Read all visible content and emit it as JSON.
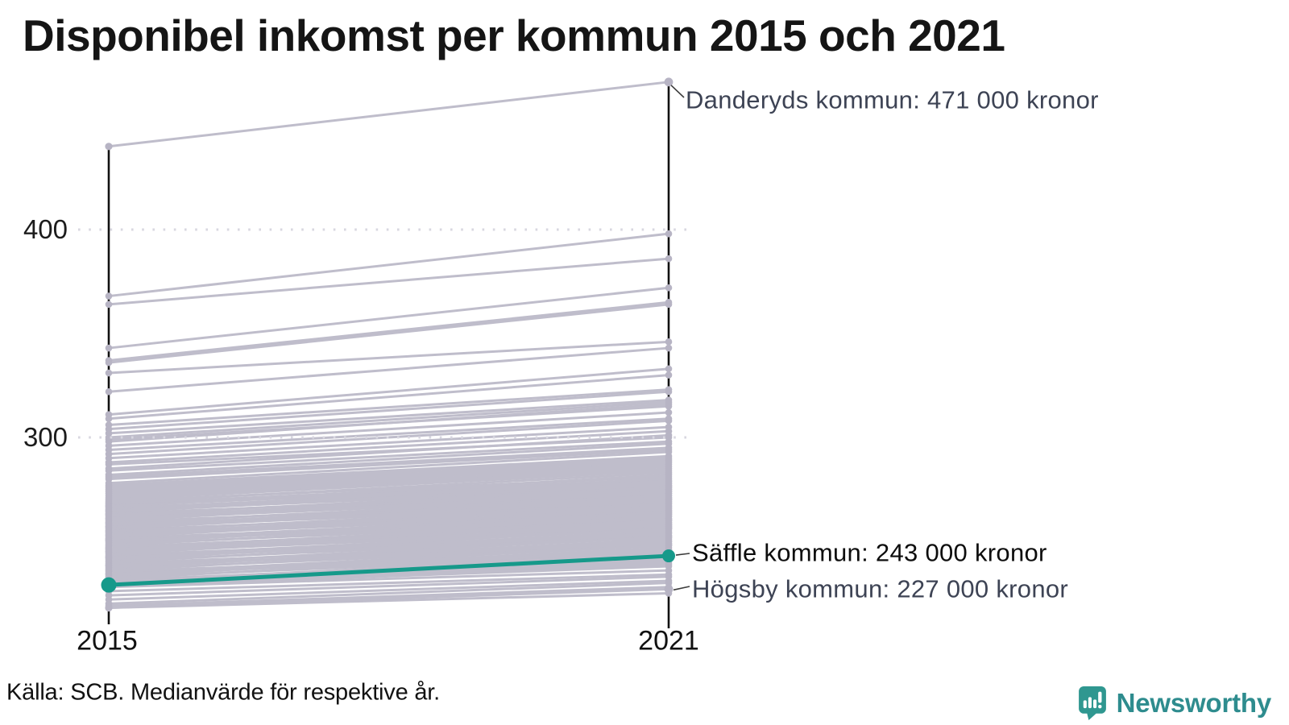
{
  "title": "Disponibel inkomst per kommun 2015 och 2021",
  "source": "Källa: SCB. Medianvärde för respektive år.",
  "logo": {
    "text": "Newsworthy"
  },
  "colors": {
    "accent": "#16998a",
    "background_line": "#bfbdcb",
    "background_dot": "#b7b4c4",
    "gridline": "#d8d7e0",
    "axis": "#111111",
    "leader": "#3c3c3c",
    "annotation_gray": "#3d4354",
    "annotation_black": "#0d0d0d",
    "logo_teal": "#2f9790"
  },
  "chart_data": {
    "type": "line",
    "subtype": "slope-chart",
    "title": "Disponibel inkomst per kommun 2015 och 2021",
    "x_labels": [
      "2015",
      "2021"
    ],
    "y_tick_labels": [
      "400",
      "300"
    ],
    "y_ticks": [
      400,
      300
    ],
    "unit": "tusen kronor (axis in thousands of SEK)",
    "grid": "dotted horizontal at 300 and 400",
    "highlight": {
      "name": "Säffle kommun",
      "values_2015_2021": [
        229,
        243
      ],
      "label": "Säffle kommun: 243 000 kronor",
      "color": "#16998a"
    },
    "labeled_endpoints": [
      {
        "name": "Danderyds kommun",
        "values_2015_2021": [
          440,
          471
        ],
        "label": "Danderyds kommun: 471 000 kronor"
      },
      {
        "name": "Högsby kommun",
        "values_2015_2021": [
          218,
          227
        ],
        "label": "Högsby kommun: 227 000 kronor"
      }
    ],
    "background_series": [
      [
        368,
        398
      ],
      [
        364,
        386
      ],
      [
        343,
        372
      ],
      [
        337,
        365
      ],
      [
        336,
        364
      ],
      [
        331,
        346
      ],
      [
        322,
        343
      ],
      [
        311,
        333
      ],
      [
        309,
        330
      ],
      [
        306,
        323
      ],
      [
        304,
        322
      ],
      [
        302,
        318
      ],
      [
        300,
        317
      ],
      [
        299,
        315
      ],
      [
        298,
        316
      ],
      [
        296,
        312
      ],
      [
        294,
        309
      ],
      [
        292,
        308
      ],
      [
        290,
        305
      ],
      [
        288,
        303
      ],
      [
        287,
        300
      ],
      [
        285,
        301
      ],
      [
        284,
        298
      ],
      [
        282,
        297
      ],
      [
        281,
        295
      ],
      [
        280,
        294
      ],
      [
        278,
        293
      ],
      [
        277,
        291
      ],
      [
        276,
        290
      ],
      [
        275,
        289
      ],
      [
        274,
        288
      ],
      [
        273,
        287
      ],
      [
        272,
        286
      ],
      [
        271,
        285
      ],
      [
        270,
        284
      ],
      [
        269.3,
        281
      ],
      [
        268.6,
        283
      ],
      [
        268,
        280
      ],
      [
        267.3,
        278
      ],
      [
        267,
        279
      ],
      [
        266.6,
        282
      ],
      [
        266,
        277
      ],
      [
        265.3,
        279
      ],
      [
        265,
        277
      ],
      [
        264.6,
        276
      ],
      [
        264,
        278
      ],
      [
        263.3,
        274
      ],
      [
        263,
        275
      ],
      [
        262.6,
        276
      ],
      [
        262,
        273
      ],
      [
        261.3,
        275
      ],
      [
        261,
        273
      ],
      [
        260.6,
        272
      ],
      [
        260,
        274
      ],
      [
        259.3,
        270
      ],
      [
        259,
        271
      ],
      [
        258.6,
        272
      ],
      [
        258,
        269
      ],
      [
        257.3,
        271
      ],
      [
        257,
        269
      ],
      [
        256.6,
        268
      ],
      [
        256,
        270
      ],
      [
        255.3,
        266
      ],
      [
        255,
        267
      ],
      [
        254.6,
        268
      ],
      [
        254,
        265
      ],
      [
        253.3,
        267
      ],
      [
        253,
        265
      ],
      [
        252.6,
        264
      ],
      [
        252,
        266
      ],
      [
        251.3,
        262
      ],
      [
        251,
        263
      ],
      [
        250.6,
        264
      ],
      [
        250.3,
        260.5
      ],
      [
        250,
        261
      ],
      [
        249.3,
        263
      ],
      [
        248.6,
        260
      ],
      [
        248,
        262
      ],
      [
        247.3,
        258
      ],
      [
        247,
        259
      ],
      [
        246.6,
        260
      ],
      [
        246.3,
        256.5
      ],
      [
        246,
        257
      ],
      [
        245.3,
        259
      ],
      [
        245,
        257
      ],
      [
        244.6,
        256
      ],
      [
        244,
        258
      ],
      [
        243.3,
        254
      ],
      [
        242.6,
        256
      ],
      [
        242.3,
        252.5
      ],
      [
        242,
        253
      ],
      [
        241.3,
        255
      ],
      [
        240.6,
        252
      ],
      [
        240,
        254
      ],
      [
        239.3,
        250
      ],
      [
        238.6,
        252
      ],
      [
        238.3,
        248.5
      ],
      [
        238,
        249
      ],
      [
        237.3,
        251
      ],
      [
        236.6,
        248
      ],
      [
        236,
        250
      ],
      [
        235.3,
        246
      ],
      [
        234.6,
        248
      ],
      [
        234.3,
        244.5
      ],
      [
        234,
        245
      ],
      [
        233.3,
        247
      ],
      [
        232.6,
        244
      ],
      [
        232,
        246
      ],
      [
        231.3,
        242
      ],
      [
        230.6,
        244
      ],
      [
        230.3,
        242.5
      ],
      [
        230,
        241
      ],
      [
        229.5,
        240
      ],
      [
        229,
        239
      ],
      [
        228.4,
        238
      ],
      [
        228,
        236
      ],
      [
        226,
        234
      ],
      [
        224,
        233
      ],
      [
        222,
        231
      ],
      [
        220,
        230
      ],
      [
        219,
        228
      ],
      [
        218,
        225
      ]
    ]
  }
}
